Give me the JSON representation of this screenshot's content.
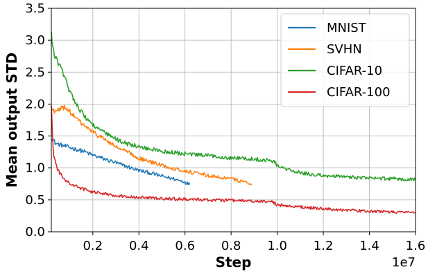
{
  "chart_data": {
    "type": "line",
    "xlabel": "Step",
    "ylabel": "Mean output STD",
    "x_scale_label": "1e7",
    "xlim": [
      0.02,
      1.6
    ],
    "ylim": [
      0.0,
      3.5
    ],
    "x_ticks": [
      0.2,
      0.4,
      0.6,
      0.8,
      1.0,
      1.2,
      1.4,
      1.6
    ],
    "x_tick_labels": [
      "0.2",
      "0.4",
      "0.6",
      "0.8",
      "1.0",
      "1.2",
      "1.4",
      "1.6"
    ],
    "y_ticks": [
      0.0,
      0.5,
      1.0,
      1.5,
      2.0,
      2.5,
      3.0,
      3.5
    ],
    "y_tick_labels": [
      "0.0",
      "0.5",
      "1.0",
      "1.5",
      "2.0",
      "2.5",
      "3.0",
      "3.5"
    ],
    "grid": true,
    "legend_position": "top-right",
    "series": [
      {
        "name": "MNIST",
        "color": "#1f77b4",
        "x": [
          0.02,
          0.04,
          0.08,
          0.12,
          0.16,
          0.2,
          0.25,
          0.3,
          0.35,
          0.4,
          0.45,
          0.5,
          0.55,
          0.6,
          0.62
        ],
        "y": [
          1.48,
          1.38,
          1.34,
          1.3,
          1.26,
          1.2,
          1.14,
          1.08,
          1.02,
          0.96,
          0.92,
          0.87,
          0.83,
          0.78,
          0.74
        ]
      },
      {
        "name": "SVHN",
        "color": "#ff7f0e",
        "x": [
          0.02,
          0.04,
          0.06,
          0.08,
          0.1,
          0.12,
          0.15,
          0.2,
          0.25,
          0.3,
          0.35,
          0.4,
          0.5,
          0.6,
          0.7,
          0.8,
          0.86,
          0.89
        ],
        "y": [
          1.92,
          1.88,
          1.92,
          1.96,
          1.88,
          1.8,
          1.7,
          1.56,
          1.45,
          1.33,
          1.25,
          1.15,
          1.04,
          0.95,
          0.88,
          0.83,
          0.78,
          0.74
        ]
      },
      {
        "name": "CIFAR-10",
        "color": "#2ca02c",
        "x": [
          0.02,
          0.03,
          0.05,
          0.08,
          0.1,
          0.13,
          0.16,
          0.2,
          0.25,
          0.3,
          0.35,
          0.4,
          0.5,
          0.6,
          0.7,
          0.8,
          0.9,
          0.96,
          0.99,
          1.0,
          1.05,
          1.1,
          1.2,
          1.3,
          1.4,
          1.5,
          1.6
        ],
        "y": [
          3.1,
          2.8,
          2.65,
          2.4,
          2.2,
          2.0,
          1.82,
          1.68,
          1.55,
          1.45,
          1.38,
          1.33,
          1.26,
          1.22,
          1.19,
          1.16,
          1.14,
          1.12,
          1.1,
          1.03,
          0.97,
          0.92,
          0.88,
          0.86,
          0.84,
          0.83,
          0.82
        ]
      },
      {
        "name": "CIFAR-100",
        "color": "#d62728",
        "x": [
          0.02,
          0.025,
          0.03,
          0.04,
          0.05,
          0.07,
          0.1,
          0.15,
          0.2,
          0.3,
          0.4,
          0.5,
          0.6,
          0.7,
          0.8,
          0.9,
          0.98,
          1.0,
          1.1,
          1.2,
          1.3,
          1.4,
          1.5,
          1.6
        ],
        "y": [
          2.0,
          1.5,
          1.2,
          1.05,
          0.95,
          0.85,
          0.75,
          0.68,
          0.62,
          0.57,
          0.54,
          0.52,
          0.51,
          0.5,
          0.49,
          0.48,
          0.47,
          0.42,
          0.39,
          0.36,
          0.34,
          0.32,
          0.31,
          0.3
        ]
      }
    ]
  }
}
